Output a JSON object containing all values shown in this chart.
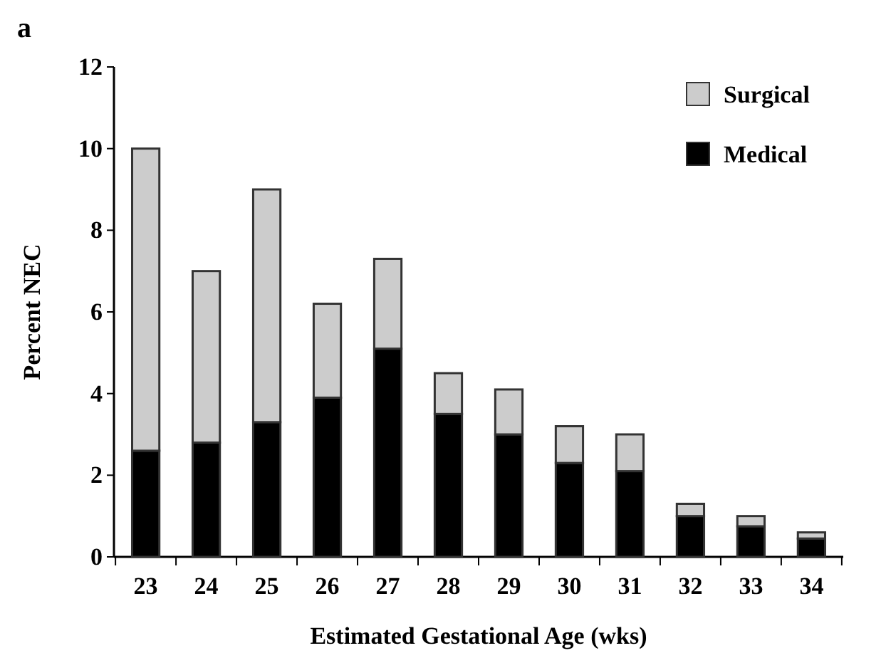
{
  "chart_data": {
    "type": "bar",
    "stacked": true,
    "categories": [
      "23",
      "24",
      "25",
      "26",
      "27",
      "28",
      "29",
      "30",
      "31",
      "32",
      "33",
      "34"
    ],
    "series": [
      {
        "name": "Medical",
        "color": "#000000",
        "values": [
          2.6,
          2.8,
          3.3,
          3.9,
          5.1,
          3.5,
          3.0,
          2.3,
          2.1,
          1.0,
          0.75,
          0.45
        ]
      },
      {
        "name": "Surgical",
        "color": "#cccccc",
        "values": [
          7.4,
          4.2,
          5.7,
          2.3,
          2.2,
          1.0,
          1.1,
          0.9,
          0.9,
          0.3,
          0.25,
          0.15
        ]
      }
    ],
    "ylim": [
      0,
      12
    ],
    "yticks": [
      0,
      2,
      4,
      6,
      8,
      10,
      12
    ],
    "xlabel": "Estimated Gestational Age (wks)",
    "ylabel": "Percent NEC",
    "legend": "top right",
    "grid": false,
    "annotations": [
      "a"
    ]
  }
}
